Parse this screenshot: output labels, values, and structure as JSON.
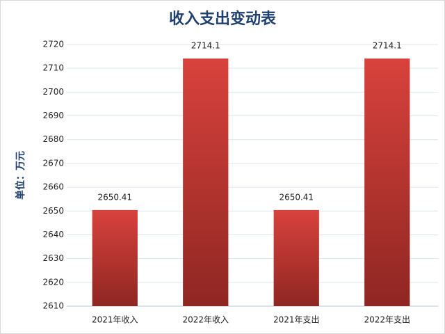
{
  "chart_data": {
    "type": "bar",
    "title": "收入支出变动表",
    "y_label": "单位：万元",
    "categories": [
      "2021年收入",
      "2022年收入",
      "2021年支出",
      "2022年支出"
    ],
    "values": [
      2650.41,
      2714.1,
      2650.41,
      2714.1
    ],
    "color": "#c93732",
    "ylim": [
      2610,
      2720
    ],
    "yticks": [
      2610,
      2620,
      2630,
      2640,
      2650,
      2660,
      2670,
      2680,
      2690,
      2700,
      2710,
      2720
    ],
    "grid": true
  }
}
